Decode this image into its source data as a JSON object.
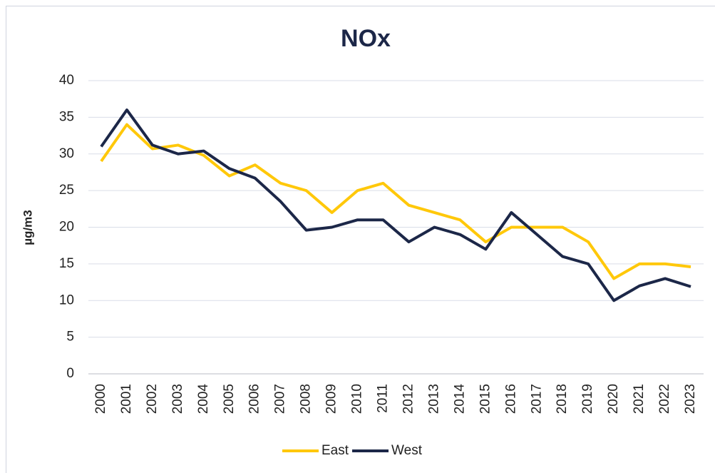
{
  "chart_data": {
    "type": "line",
    "title": "NOx",
    "y_label": "µg/m3",
    "categories": [
      "2000",
      "2001",
      "2002",
      "2003",
      "2004",
      "2005",
      "2006",
      "2007",
      "2008",
      "2009",
      "2010",
      "2011",
      "2012",
      "2013",
      "2014",
      "2015",
      "2016",
      "2017",
      "2018",
      "2019",
      "2020",
      "2021",
      "2022",
      "2023"
    ],
    "series": [
      {
        "name": "East",
        "color": "#ffc80a",
        "values": [
          29,
          34,
          30.7,
          31.2,
          29.8,
          27,
          28.5,
          26,
          25,
          22,
          25,
          26,
          23,
          22,
          21,
          18,
          20,
          20,
          20,
          18,
          13,
          15,
          15,
          14.6
        ]
      },
      {
        "name": "West",
        "color": "#1c2748",
        "values": [
          31,
          36,
          31.2,
          30,
          30.4,
          28,
          26.7,
          23.5,
          19.6,
          20,
          21,
          21,
          18,
          20,
          19,
          17,
          22,
          19,
          16,
          15,
          10,
          12,
          13,
          11.9
        ]
      }
    ],
    "ylim": [
      0,
      40
    ],
    "yticks": [
      0,
      5,
      10,
      15,
      20,
      25,
      30,
      35,
      40
    ],
    "grid": true,
    "legend": "bottom"
  }
}
